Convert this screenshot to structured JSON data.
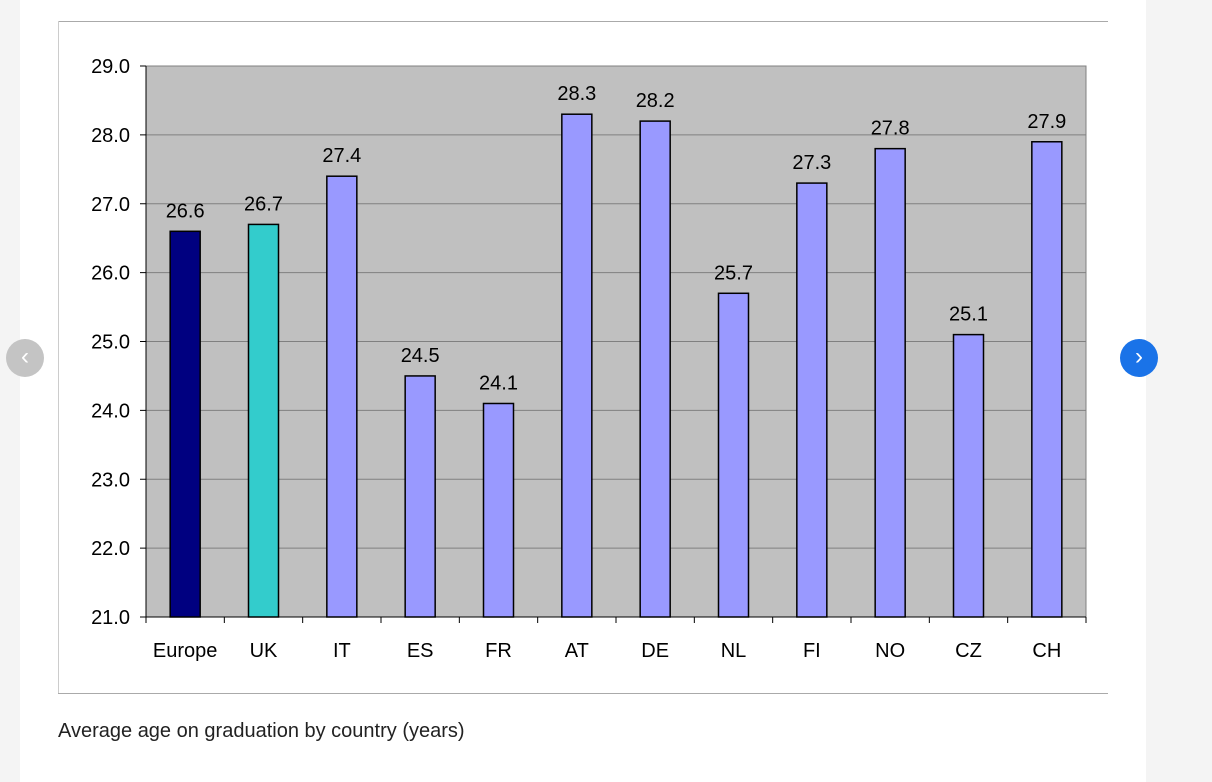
{
  "nav": {
    "prev_glyph": "‹",
    "next_glyph": "›",
    "prev_icon": "chevron-left-icon",
    "next_icon": "chevron-right-icon"
  },
  "caption": "Average age on graduation by country (years)",
  "chart_data": {
    "type": "bar",
    "title": "",
    "xlabel": "",
    "ylabel": "",
    "categories": [
      "Europe",
      "UK",
      "IT",
      "ES",
      "FR",
      "AT",
      "DE",
      "NL",
      "FI",
      "NO",
      "CZ",
      "CH"
    ],
    "values": [
      26.6,
      26.7,
      27.4,
      24.5,
      24.1,
      28.3,
      28.2,
      25.7,
      27.3,
      27.8,
      25.1,
      27.9
    ],
    "data_labels": [
      "26.6",
      "26.7",
      "27.4",
      "24.5",
      "24.1",
      "28.3",
      "28.2",
      "25.7",
      "27.3",
      "27.8",
      "25.1",
      "27.9"
    ],
    "bar_colors": [
      "#000080",
      "#33cccc",
      "#9999ff",
      "#9999ff",
      "#9999ff",
      "#9999ff",
      "#9999ff",
      "#9999ff",
      "#9999ff",
      "#9999ff",
      "#9999ff",
      "#9999ff"
    ],
    "plot_background": "#c0c0c0",
    "ylim": [
      21.0,
      29.0
    ],
    "yticks": [
      "21.0",
      "22.0",
      "23.0",
      "24.0",
      "25.0",
      "26.0",
      "27.0",
      "28.0",
      "29.0"
    ],
    "grid": true,
    "legend": "none"
  }
}
